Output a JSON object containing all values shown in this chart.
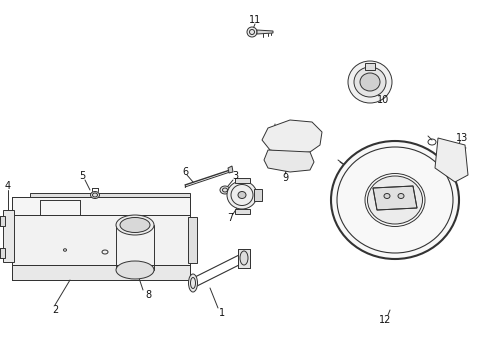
{
  "bg_color": "#ffffff",
  "line_color": "#333333",
  "label_color": "#111111",
  "lw": 0.7
}
